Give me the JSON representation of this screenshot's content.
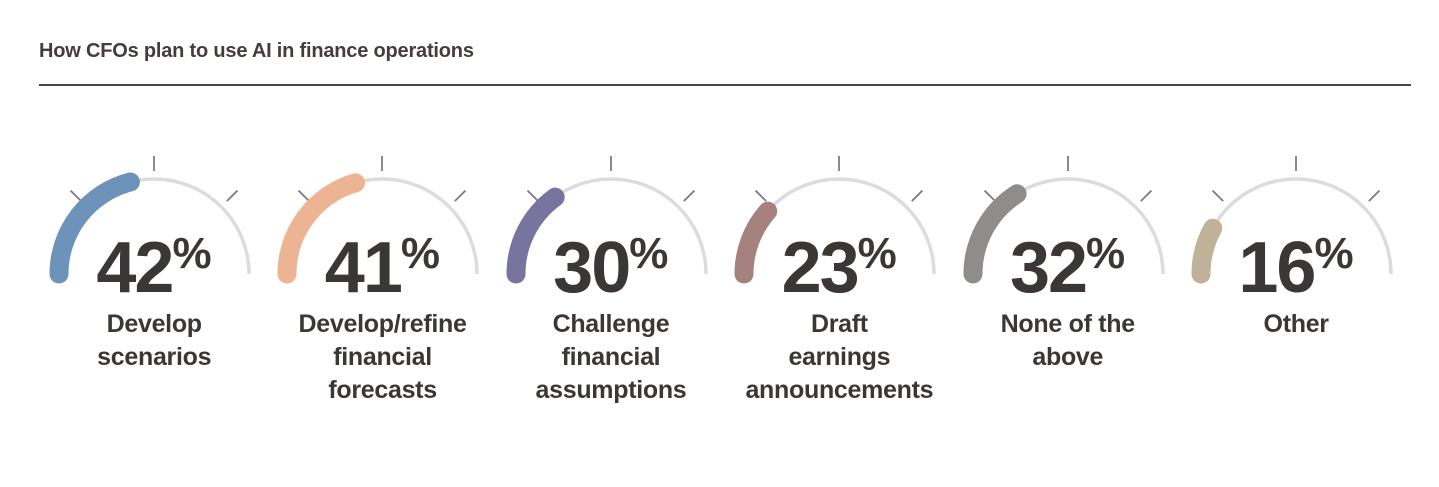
{
  "header": {
    "title": "How CFOs plan to use AI in finance operations"
  },
  "colors": {
    "title_text": "#433e3a",
    "body_text": "#3b3734",
    "divider": "#4a4543",
    "gauge_track": "#dcdcdc",
    "gauge_tick": "#7d7d7d",
    "background": "#ffffff"
  },
  "chart_data": {
    "type": "gauge",
    "variant": "semicircle-small-multiples",
    "title": "How CFOs plan to use AI in finance operations",
    "categories": [
      "Develop scenarios",
      "Develop/refine financial forecasts",
      "Challenge financial assumptions",
      "Draft earnings announcements",
      "None of the above",
      "Other"
    ],
    "values": [
      42,
      41,
      30,
      23,
      32,
      16
    ],
    "unit": "%",
    "range": [
      0,
      100
    ],
    "colors": [
      "#6e93ba",
      "#edb493",
      "#77759f",
      "#a5827e",
      "#8f8d8b",
      "#c0b199"
    ],
    "legend": "none",
    "grid": "off"
  },
  "gauges": [
    {
      "value": 42,
      "unit": "%",
      "color": "#6e93ba",
      "label_lines": [
        "Develop",
        "scenarios"
      ]
    },
    {
      "value": 41,
      "unit": "%",
      "color": "#edb493",
      "label_lines": [
        "Develop/refine",
        "financial",
        "forecasts"
      ]
    },
    {
      "value": 30,
      "unit": "%",
      "color": "#77759f",
      "label_lines": [
        "Challenge",
        "financial",
        "assumptions"
      ]
    },
    {
      "value": 23,
      "unit": "%",
      "color": "#a5827e",
      "label_lines": [
        "Draft",
        "earnings",
        "announcements"
      ]
    },
    {
      "value": 32,
      "unit": "%",
      "color": "#8f8d8b",
      "label_lines": [
        "None of the",
        "above"
      ]
    },
    {
      "value": 16,
      "unit": "%",
      "color": "#c0b199",
      "label_lines": [
        "Other"
      ]
    }
  ]
}
